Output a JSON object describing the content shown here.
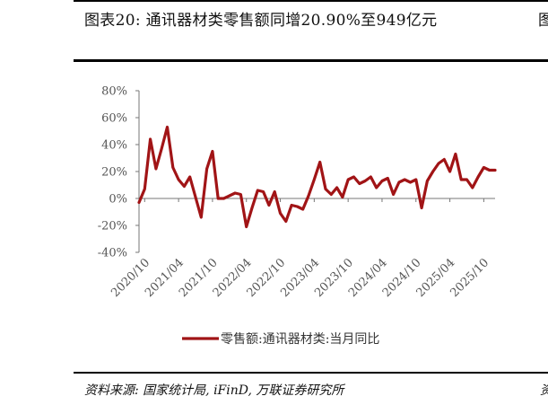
{
  "header": {
    "title": "图表20:  通讯器材类零售额同增20.90%至949亿元",
    "right_fragment": "图"
  },
  "footer": {
    "source": "资料来源: 国家统计局, iFinD, 万联证券研究所",
    "right_fragment": "资"
  },
  "chart_data": {
    "type": "line",
    "title": "",
    "xlabel": "",
    "ylabel": "",
    "ylim": [
      -40,
      80
    ],
    "yticks": [
      -40,
      -20,
      0,
      20,
      40,
      60,
      80
    ],
    "ytick_labels": [
      "-40%",
      "-20%",
      "0%",
      "20%",
      "40%",
      "60%",
      "80%"
    ],
    "xtick_labels": [
      "2020/10",
      "2021/04",
      "2021/10",
      "2022/04",
      "2022/10",
      "2023/04",
      "2023/10",
      "2024/04",
      "2024/10",
      "2025/04",
      "2025/10"
    ],
    "xtick_month_index": [
      0,
      6,
      12,
      18,
      24,
      30,
      36,
      42,
      48,
      54,
      60
    ],
    "grid": false,
    "legend_position": "bottom",
    "line_color": "#a11416",
    "series": [
      {
        "name": "零售额:通讯器材类:当月同比",
        "start": "2020/09",
        "frequency": "monthly",
        "values": [
          -3,
          7,
          44,
          22,
          37,
          53,
          23,
          14,
          9,
          16,
          1,
          -14,
          22,
          35,
          0,
          0,
          2,
          4,
          3,
          -21,
          -7,
          6,
          5,
          -5,
          5,
          -11,
          -17,
          -5,
          -6,
          -8,
          2,
          14,
          27,
          7,
          3,
          8,
          1,
          14,
          16,
          11,
          13,
          16,
          8,
          13,
          15,
          3,
          12,
          14,
          12,
          14,
          -7,
          13,
          20,
          26,
          29,
          20,
          33,
          14,
          14,
          8,
          16,
          23,
          21,
          21
        ]
      }
    ]
  }
}
